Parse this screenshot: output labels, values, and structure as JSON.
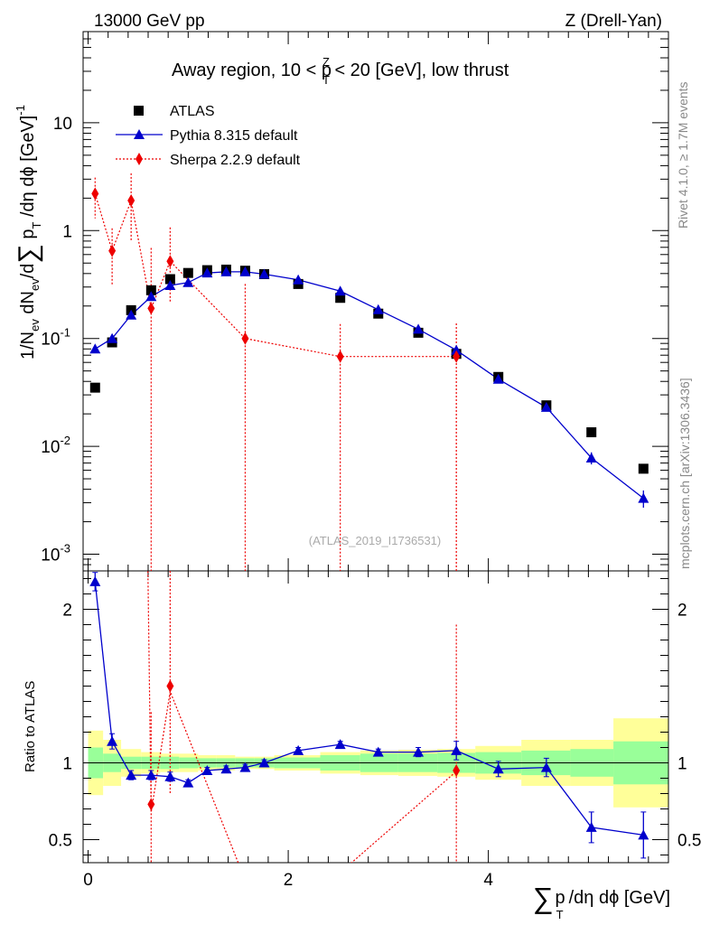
{
  "header": {
    "energy_label": "13000 GeV pp",
    "process_label": "Z (Drell-Yan)",
    "region_title": "Away region, 10 < p",
    "region_title_sup": "Z",
    "region_title_sub": "T",
    "region_title_rest": " < 20 [GeV], low thrust",
    "analysis_id": "(ATLAS_2019_I1736531)"
  },
  "side_labels": {
    "rivet": "Rivet 4.1.0, ≥ 1.7M events",
    "mcplots": "mcplots.cern.ch [arXiv:1306.3436]"
  },
  "axes": {
    "ylabel_main": "1/N",
    "ylabel_main_sub1": "ev",
    "ylabel_main_mid": " dN",
    "ylabel_main_sub2": "ev",
    "ylabel_main_rest": "/d",
    "ylabel_main_sum": "∑",
    "ylabel_main_pt": " p",
    "ylabel_main_pt_sub": "T",
    "ylabel_main_tail": " /dη dϕ  [GeV]",
    "ylabel_main_exp": "-1",
    "ylabel_ratio": "Ratio to ATLAS",
    "xlabel_sum": "∑",
    "xlabel_p": "p",
    "xlabel_sub": "T",
    "xlabel_rest": "/dη dϕ [GeV]"
  },
  "legend": {
    "atlas": "ATLAS",
    "pythia": "Pythia 8.315 default",
    "sherpa": "Sherpa 2.2.9 default"
  },
  "colors": {
    "data": "#000000",
    "pythia": "#0000cc",
    "sherpa": "#ee0000",
    "band_inner": "#99ff99",
    "band_outer": "#ffff99"
  },
  "chart_data": [
    {
      "type": "scatter",
      "title": "Away region, 10 < pT^Z < 20 [GeV], low thrust",
      "xlabel": "∑ pT /dη dϕ [GeV]",
      "ylabel": "1/Nev dNev/d∑ pT /dη dϕ [GeV]^-1",
      "yscale": "log",
      "xlim": [
        -0.05,
        5.8
      ],
      "ylim": [
        0.0007,
        70
      ],
      "x_ticks": [
        "0",
        "2",
        "4"
      ],
      "y_ticks": [
        "10^-3",
        "10^-2",
        "10^-1",
        "1",
        "10"
      ],
      "series": [
        {
          "name": "ATLAS",
          "marker": "square",
          "x": [
            0.07,
            0.24,
            0.43,
            0.63,
            0.82,
            1.0,
            1.19,
            1.38,
            1.57,
            1.76,
            2.1,
            2.52,
            2.9,
            3.3,
            3.68,
            4.1,
            4.58,
            5.03,
            5.55
          ],
          "y": [
            0.035,
            0.092,
            0.183,
            0.28,
            0.355,
            0.405,
            0.43,
            0.435,
            0.425,
            0.395,
            0.32,
            0.238,
            0.17,
            0.113,
            0.072,
            0.044,
            0.024,
            0.0135,
            0.0062
          ]
        },
        {
          "name": "Pythia 8.315 default",
          "marker": "triangle",
          "x": [
            0.07,
            0.24,
            0.43,
            0.63,
            0.82,
            1.0,
            1.19,
            1.38,
            1.57,
            1.76,
            2.1,
            2.52,
            2.9,
            3.3,
            3.68,
            4.1,
            4.58,
            5.03,
            5.55
          ],
          "y": [
            0.08,
            0.1,
            0.165,
            0.245,
            0.31,
            0.33,
            0.405,
            0.415,
            0.415,
            0.395,
            0.35,
            0.275,
            0.185,
            0.122,
            0.078,
            0.042,
            0.023,
            0.0078,
            0.0033
          ],
          "err": [
            0.004,
            0.005,
            0.008,
            0.012,
            0.015,
            0.016,
            0.015,
            0.015,
            0.015,
            0.014,
            0.012,
            0.01,
            0.007,
            0.005,
            0.004,
            0.002,
            0.0012,
            0.001,
            0.0006
          ]
        },
        {
          "name": "Sherpa 2.2.9 default",
          "marker": "diamond",
          "x": [
            0.07,
            0.24,
            0.43,
            0.63,
            0.82,
            1.57,
            2.52,
            3.68
          ],
          "y": [
            2.2,
            0.65,
            1.9,
            0.19,
            0.52,
            0.1,
            0.068,
            0.068
          ],
          "err_lo": [
            0.9,
            0.34,
            1.1,
            0.19,
            0.3,
            0.1,
            0.068,
            0.068
          ],
          "err_hi": [
            0.9,
            0.4,
            1.5,
            0.5,
            0.55,
            0.22,
            0.068,
            0.07
          ]
        }
      ]
    },
    {
      "type": "scatter",
      "title": "Ratio to ATLAS",
      "ylabel": "Ratio to ATLAS",
      "ylim": [
        0.35,
        2.25
      ],
      "y_ticks": [
        "0.5",
        "1",
        "2"
      ],
      "bin_edges": [
        0.0,
        0.15,
        0.33,
        0.53,
        0.72,
        0.91,
        1.1,
        1.28,
        1.47,
        1.66,
        1.86,
        2.32,
        2.72,
        3.1,
        3.49,
        3.87,
        4.33,
        4.82,
        5.25,
        5.8
      ],
      "band_inner_halfwidth": [
        0.1,
        0.06,
        0.04,
        0.04,
        0.04,
        0.035,
        0.03,
        0.03,
        0.03,
        0.03,
        0.035,
        0.05,
        0.06,
        0.06,
        0.065,
        0.07,
        0.08,
        0.09,
        0.14
      ],
      "band_outer_halfwidth": [
        0.21,
        0.15,
        0.09,
        0.07,
        0.06,
        0.06,
        0.05,
        0.05,
        0.04,
        0.04,
        0.05,
        0.07,
        0.08,
        0.085,
        0.09,
        0.11,
        0.15,
        0.15,
        0.29
      ],
      "series": [
        {
          "name": "Pythia 8.315 default",
          "x": [
            0.07,
            0.24,
            0.43,
            0.63,
            0.82,
            1.0,
            1.19,
            1.38,
            1.57,
            1.76,
            2.1,
            2.52,
            2.9,
            3.3,
            3.68,
            4.1,
            4.58,
            5.03,
            5.55
          ],
          "y": [
            2.18,
            1.14,
            0.92,
            0.92,
            0.91,
            0.87,
            0.95,
            0.96,
            0.97,
            1.0,
            1.08,
            1.12,
            1.07,
            1.07,
            1.08,
            0.96,
            0.97,
            0.58,
            0.53
          ],
          "err": [
            0.06,
            0.05,
            0.03,
            0.03,
            0.03,
            0.02,
            0.02,
            0.02,
            0.02,
            0.02,
            0.02,
            0.02,
            0.02,
            0.03,
            0.06,
            0.05,
            0.06,
            0.1,
            0.15
          ]
        },
        {
          "name": "Sherpa 2.2.9 default",
          "x": [
            0.63,
            0.82,
            3.68
          ],
          "y": [
            0.73,
            1.5,
            0.95
          ],
          "err_lo": [
            0.5,
            0.7,
            0.95
          ],
          "err_hi": [
            0.6,
            0.75,
            0.95
          ]
        }
      ]
    }
  ]
}
